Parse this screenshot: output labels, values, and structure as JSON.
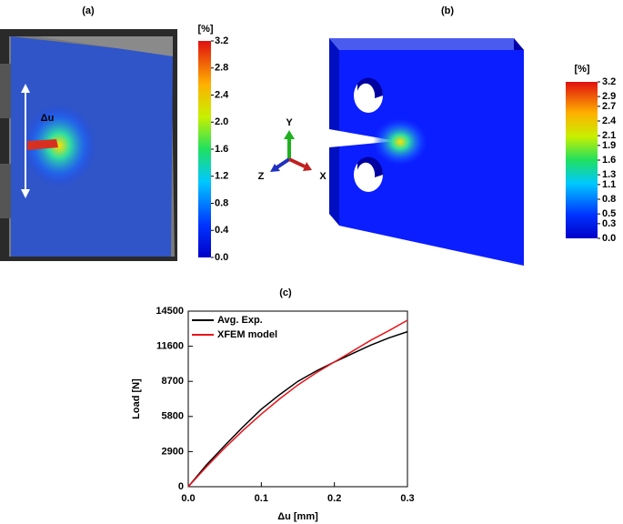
{
  "chart_data": [
    {
      "type": "colorbar",
      "title": "(a)",
      "colorbar_title": "[%]",
      "annotations": [
        "Δu"
      ],
      "clim": [
        0,
        3.2
      ],
      "ticks": [
        {
          "value": 0,
          "label": "0.0"
        },
        0.4,
        0.8,
        1.2,
        1.6,
        {
          "value": 2,
          "label": "2.0"
        },
        2.4,
        2.8,
        3.2
      ]
    },
    {
      "type": "colorbar",
      "title": "(b)",
      "colorbar_title": "[%]",
      "annotations": [
        "Y",
        "Z",
        "X"
      ],
      "clim": [
        0,
        3.2
      ],
      "ticks": [
        {
          "value": 0,
          "label": "0.0"
        },
        0.3,
        0.5,
        0.8,
        1.1,
        1.3,
        1.6,
        1.9,
        2.1,
        2.4,
        2.7,
        2.9,
        3.2
      ]
    },
    {
      "type": "line",
      "title": "(c)",
      "x_label": "Δu [mm]",
      "y_label": "Load [N]",
      "x": [
        0,
        0.025,
        0.05,
        0.075,
        0.1,
        0.125,
        0.15,
        0.175,
        0.2,
        0.225,
        0.25,
        0.275,
        0.3
      ],
      "series": [
        {
          "name": "Avg. Exp.",
          "color": "#000000",
          "values": [
            0,
            1800,
            3400,
            4950,
            6400,
            7600,
            8700,
            9550,
            10300,
            11000,
            11700,
            12300,
            12800
          ]
        },
        {
          "name": "XFEM model",
          "color": "#e8141b",
          "values": [
            0,
            1650,
            3200,
            4650,
            6000,
            7250,
            8400,
            9400,
            10300,
            11200,
            12100,
            12900,
            13750
          ]
        }
      ],
      "xlim": [
        0,
        0.3
      ],
      "xticks": [
        {
          "value": 0,
          "label": "0.0"
        },
        0.1,
        0.2,
        0.3
      ],
      "ylim": [
        0,
        14500
      ],
      "yticks": [
        0,
        2900,
        5800,
        8700,
        11600,
        14500
      ],
      "legend": "upper-left"
    }
  ]
}
